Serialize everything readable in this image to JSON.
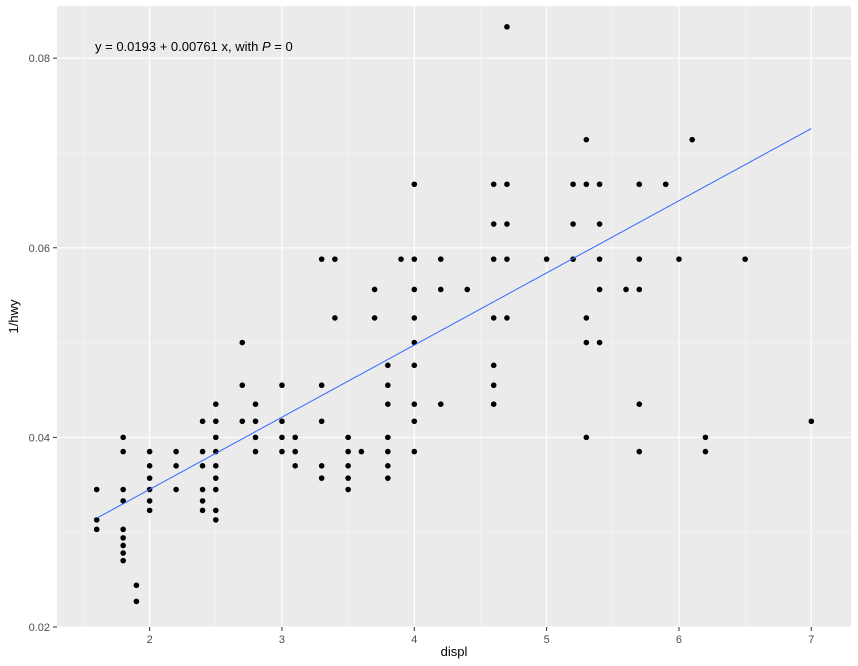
{
  "chart_data": {
    "type": "scatter",
    "xlabel": "displ",
    "ylabel": "1/hwy",
    "xlim": [
      1.3,
      7.3
    ],
    "ylim": [
      0.02,
      0.0855
    ],
    "x_ticks": [
      2,
      3,
      4,
      5,
      6,
      7
    ],
    "x_tick_labels": [
      "2",
      "3",
      "4",
      "5",
      "6",
      "7"
    ],
    "y_ticks": [
      0.02,
      0.04,
      0.06,
      0.08
    ],
    "y_tick_labels": [
      "0.02",
      "0.04",
      "0.06",
      "0.08"
    ],
    "grid": true,
    "annotation": {
      "prefix": "y = 0.0193 + 0.00761 x, with ",
      "p_symbol": "P",
      "suffix": " = 0"
    },
    "fit_line": {
      "intercept": 0.0193,
      "slope": 0.00761,
      "x_range": [
        1.6,
        7.0
      ],
      "color": "#3366ff"
    },
    "points": [
      [
        1.6,
        0.0345
      ],
      [
        1.6,
        0.0313
      ],
      [
        1.6,
        0.0303
      ],
      [
        1.8,
        0.04
      ],
      [
        1.8,
        0.0385
      ],
      [
        1.8,
        0.0345
      ],
      [
        1.8,
        0.0333
      ],
      [
        1.8,
        0.0303
      ],
      [
        1.8,
        0.0294
      ],
      [
        1.8,
        0.0286
      ],
      [
        1.8,
        0.0278
      ],
      [
        1.8,
        0.027
      ],
      [
        1.9,
        0.0244
      ],
      [
        1.9,
        0.0227
      ],
      [
        2.0,
        0.0385
      ],
      [
        2.0,
        0.037
      ],
      [
        2.0,
        0.0357
      ],
      [
        2.0,
        0.0345
      ],
      [
        2.0,
        0.0333
      ],
      [
        2.0,
        0.0323
      ],
      [
        2.2,
        0.0385
      ],
      [
        2.2,
        0.037
      ],
      [
        2.2,
        0.0345
      ],
      [
        2.4,
        0.0417
      ],
      [
        2.4,
        0.0385
      ],
      [
        2.4,
        0.037
      ],
      [
        2.4,
        0.0345
      ],
      [
        2.4,
        0.0333
      ],
      [
        2.4,
        0.0323
      ],
      [
        2.5,
        0.0435
      ],
      [
        2.5,
        0.0417
      ],
      [
        2.5,
        0.04
      ],
      [
        2.5,
        0.0385
      ],
      [
        2.5,
        0.037
      ],
      [
        2.5,
        0.0357
      ],
      [
        2.5,
        0.0345
      ],
      [
        2.5,
        0.0323
      ],
      [
        2.5,
        0.0313
      ],
      [
        2.7,
        0.05
      ],
      [
        2.7,
        0.0455
      ],
      [
        2.7,
        0.0417
      ],
      [
        2.8,
        0.0435
      ],
      [
        2.8,
        0.0417
      ],
      [
        2.8,
        0.04
      ],
      [
        2.8,
        0.0385
      ],
      [
        3.0,
        0.0455
      ],
      [
        3.0,
        0.0417
      ],
      [
        3.0,
        0.04
      ],
      [
        3.0,
        0.0385
      ],
      [
        3.1,
        0.04
      ],
      [
        3.1,
        0.0385
      ],
      [
        3.1,
        0.037
      ],
      [
        3.3,
        0.0588
      ],
      [
        3.3,
        0.0455
      ],
      [
        3.3,
        0.0417
      ],
      [
        3.3,
        0.037
      ],
      [
        3.3,
        0.0357
      ],
      [
        3.4,
        0.0588
      ],
      [
        3.4,
        0.0526
      ],
      [
        3.5,
        0.04
      ],
      [
        3.5,
        0.0385
      ],
      [
        3.5,
        0.037
      ],
      [
        3.5,
        0.0357
      ],
      [
        3.5,
        0.0345
      ],
      [
        3.6,
        0.0385
      ],
      [
        3.7,
        0.0556
      ],
      [
        3.7,
        0.0526
      ],
      [
        3.8,
        0.0476
      ],
      [
        3.8,
        0.0455
      ],
      [
        3.8,
        0.0435
      ],
      [
        3.8,
        0.04
      ],
      [
        3.8,
        0.0385
      ],
      [
        3.8,
        0.037
      ],
      [
        3.8,
        0.0357
      ],
      [
        3.9,
        0.0588
      ],
      [
        4.0,
        0.0667
      ],
      [
        4.0,
        0.0588
      ],
      [
        4.0,
        0.0556
      ],
      [
        4.0,
        0.0526
      ],
      [
        4.0,
        0.05
      ],
      [
        4.0,
        0.0476
      ],
      [
        4.0,
        0.0435
      ],
      [
        4.0,
        0.0417
      ],
      [
        4.0,
        0.0385
      ],
      [
        4.2,
        0.0588
      ],
      [
        4.2,
        0.0556
      ],
      [
        4.2,
        0.0435
      ],
      [
        4.4,
        0.0556
      ],
      [
        4.6,
        0.0667
      ],
      [
        4.6,
        0.0625
      ],
      [
        4.6,
        0.0588
      ],
      [
        4.6,
        0.0526
      ],
      [
        4.6,
        0.0476
      ],
      [
        4.6,
        0.0455
      ],
      [
        4.6,
        0.0435
      ],
      [
        4.7,
        0.0833
      ],
      [
        4.7,
        0.0667
      ],
      [
        4.7,
        0.0625
      ],
      [
        4.7,
        0.0588
      ],
      [
        4.7,
        0.0526
      ],
      [
        5.0,
        0.0588
      ],
      [
        5.2,
        0.0667
      ],
      [
        5.2,
        0.0625
      ],
      [
        5.2,
        0.0588
      ],
      [
        5.3,
        0.0714
      ],
      [
        5.3,
        0.0667
      ],
      [
        5.3,
        0.0526
      ],
      [
        5.3,
        0.05
      ],
      [
        5.3,
        0.04
      ],
      [
        5.4,
        0.0667
      ],
      [
        5.4,
        0.0625
      ],
      [
        5.4,
        0.0588
      ],
      [
        5.4,
        0.0556
      ],
      [
        5.4,
        0.05
      ],
      [
        5.6,
        0.0556
      ],
      [
        5.7,
        0.0667
      ],
      [
        5.7,
        0.0588
      ],
      [
        5.7,
        0.0556
      ],
      [
        5.7,
        0.0435
      ],
      [
        5.7,
        0.0385
      ],
      [
        5.9,
        0.0667
      ],
      [
        6.0,
        0.0588
      ],
      [
        6.1,
        0.0714
      ],
      [
        6.2,
        0.04
      ],
      [
        6.2,
        0.0385
      ],
      [
        6.5,
        0.0588
      ],
      [
        7.0,
        0.0417
      ]
    ]
  }
}
